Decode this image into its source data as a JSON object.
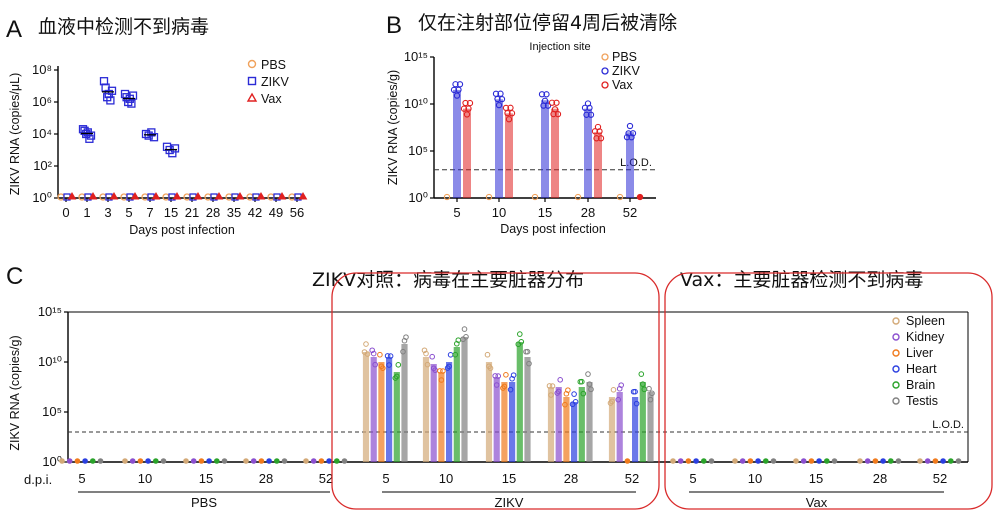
{
  "panels": {
    "A": {
      "letter": "A",
      "caption": "血液中检测不到病毒"
    },
    "B": {
      "letter": "B",
      "caption": "仅在注射部位停留4周后被清除"
    },
    "C": {
      "letter": "C",
      "caption_zikv": "ZIKV对照：病毒在主要脏器分布",
      "caption_vax": "Vax：主要脏器检测不到病毒"
    }
  },
  "colors": {
    "pbs": "#f0a15a",
    "zikv": "#2b2bd6",
    "vax": "#e02020",
    "spleen": "#d3a977",
    "kidney": "#8a4fcf",
    "liver": "#f07a1c",
    "heart": "#2b3fe0",
    "brain": "#2aa32a",
    "testis": "#808080",
    "highlight": "#d92b2b"
  },
  "chart_data": [
    {
      "id": "A",
      "type": "scatter",
      "title": "",
      "xlabel": "Days post infection",
      "ylabel": "ZIKV RNA (copies/μL)",
      "yscale": "log",
      "ylim_exp": [
        0,
        8
      ],
      "ytick_labels": [
        "10⁰",
        "10²",
        "10⁴",
        "10⁶",
        "10⁸"
      ],
      "categories": [
        "0",
        "1",
        "3",
        "5",
        "7",
        "15",
        "21",
        "28",
        "35",
        "42",
        "49",
        "56"
      ],
      "legend": [
        "PBS",
        "ZIKV",
        "Vax"
      ],
      "series": [
        {
          "name": "ZIKV",
          "points_log10": [
            [],
            [
              4.3,
              4.2,
              4.0,
              4.1,
              3.7,
              3.9
            ],
            [
              7.3,
              6.9,
              6.3,
              6.5,
              6.1,
              6.7
            ],
            [
              6.5,
              6.3,
              6.0,
              6.2,
              5.9,
              6.4
            ],
            [
              4.0,
              3.9,
              4.1,
              3.8
            ],
            [
              3.2,
              3.0,
              2.8,
              3.1
            ],
            [],
            [],
            [],
            [],
            [],
            []
          ]
        },
        {
          "name": "PBS",
          "baseline": 0
        },
        {
          "name": "Vax",
          "baseline": 0
        }
      ]
    },
    {
      "id": "B",
      "type": "bar",
      "title": "Injection site",
      "xlabel": "Days post infection",
      "ylabel": "ZIKV RNA (copies/g)",
      "yscale": "log",
      "ylim_exp": [
        0,
        15
      ],
      "ytick_labels": [
        "10⁰",
        "10⁵",
        "10¹⁰",
        "10¹⁵"
      ],
      "lod_exp": 3,
      "lod_label": "L.O.D.",
      "categories": [
        "5",
        "10",
        "15",
        "28",
        "52"
      ],
      "legend": [
        "PBS",
        "ZIKV",
        "Vax"
      ],
      "series": [
        {
          "name": "PBS",
          "values_exp": [
            0,
            0,
            0,
            0,
            0
          ]
        },
        {
          "name": "ZIKV",
          "values_exp": [
            11.5,
            10.5,
            10.4,
            9.5,
            7.0
          ]
        },
        {
          "name": "Vax",
          "values_exp": [
            9.5,
            9.0,
            9.5,
            7.0,
            0
          ]
        }
      ]
    },
    {
      "id": "C",
      "type": "bar",
      "xlabel": "d.p.i.",
      "ylabel": "ZIKV RNA (copies/g)",
      "yscale": "log",
      "ylim_exp": [
        0,
        15
      ],
      "ytick_labels": [
        "10⁰",
        "10⁵",
        "10¹⁰",
        "10¹⁵"
      ],
      "lod_exp": 3,
      "lod_label": "L.O.D.",
      "group_labels": [
        "PBS",
        "ZIKV",
        "Vax"
      ],
      "categories": [
        "5",
        "10",
        "15",
        "28",
        "52"
      ],
      "legend": [
        "Spleen",
        "Kidney",
        "Liver",
        "Heart",
        "Brain",
        "Testis"
      ],
      "series": [
        {
          "name": "PBS",
          "organs_exp": [
            [
              0,
              0,
              0,
              0,
              0,
              0
            ],
            [
              0,
              0,
              0,
              0,
              0,
              0
            ],
            [
              0,
              0,
              0,
              0,
              0,
              0
            ],
            [
              0,
              0,
              0,
              0,
              0,
              0
            ],
            [
              0,
              0,
              0,
              0,
              0,
              0
            ]
          ]
        },
        {
          "name": "ZIKV",
          "organs_exp": [
            [
              11.0,
              10.5,
              10.0,
              10.5,
              9.0,
              11.8
            ],
            [
              10.5,
              9.8,
              9.0,
              10.0,
              11.5,
              12.5
            ],
            [
              10.0,
              8.5,
              8.0,
              8.0,
              12.0,
              10.5
            ],
            [
              7.5,
              7.5,
              6.5,
              6.0,
              7.5,
              8.0
            ],
            [
              6.5,
              7.0,
              0.0,
              6.5,
              8.0,
              7.0
            ]
          ]
        },
        {
          "name": "Vax",
          "organs_exp": [
            [
              0,
              0,
              0,
              0,
              0,
              0
            ],
            [
              0,
              0,
              0,
              0,
              0,
              0
            ],
            [
              0,
              0,
              0,
              0,
              0,
              0
            ],
            [
              0,
              0,
              0,
              0,
              0,
              0
            ],
            [
              0,
              0,
              0,
              0,
              0,
              0
            ]
          ]
        }
      ]
    }
  ]
}
